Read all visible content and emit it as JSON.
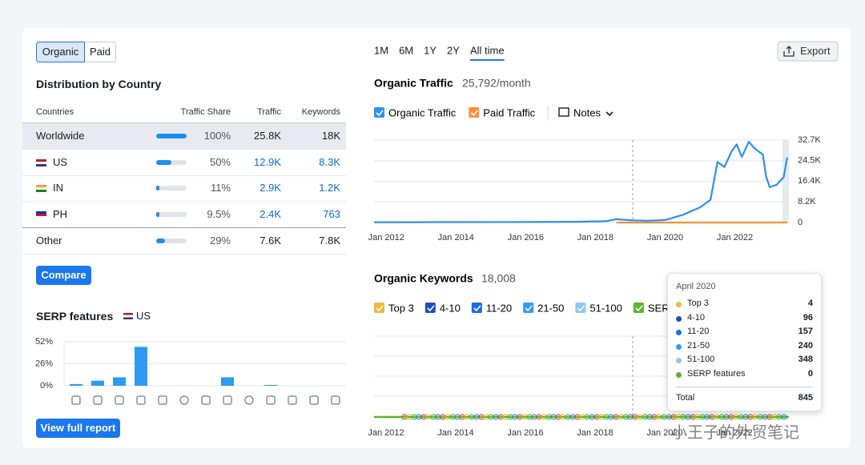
{
  "tabs": [
    "Organic",
    "Paid"
  ],
  "distribution": {
    "title": "Distribution by Country",
    "columns": [
      "Countries",
      "Traffic Share",
      "Traffic",
      "Keywords"
    ],
    "rows": [
      {
        "country": "Worldwide",
        "share": {
          "value": 100,
          "label": "100%"
        },
        "traffic": "25.8K",
        "keywords": "18K"
      },
      {
        "country": "US",
        "share": {
          "value": 50,
          "label": "50%"
        },
        "traffic": "12.9K",
        "keywords": "8.3K"
      },
      {
        "country": "IN",
        "share": {
          "value": 11,
          "label": "11%"
        },
        "traffic": "2.9K",
        "keywords": "1.2K"
      },
      {
        "country": "PH",
        "share": {
          "value": 9.5,
          "label": "9.5%"
        },
        "traffic": "2.4K",
        "keywords": "763"
      },
      {
        "country": "Other",
        "share": {
          "value": 29,
          "label": "29%"
        },
        "traffic": "7.6K",
        "keywords": "7.8K"
      }
    ]
  },
  "compare": "Compare",
  "serp_title": "SERP features",
  "serp_country": "US",
  "view_report": "View full report",
  "periods": [
    "1M",
    "6M",
    "1Y",
    "2Y",
    "All time"
  ],
  "export": "Export",
  "notes": "Notes",
  "chart_data": [
    {
      "type": "bar",
      "categories": [
        null,
        null,
        null,
        null,
        null,
        null,
        null,
        null,
        null,
        null,
        null,
        null,
        null
      ],
      "values": [
        2,
        6,
        10,
        46,
        0,
        0,
        0,
        10,
        0,
        1,
        0,
        0,
        0
      ],
      "color": "#2d9cf0",
      "ylim": [
        0,
        52
      ],
      "yticks": [
        {
          "value": 0,
          "label": "0%"
        },
        {
          "value": 26,
          "label": "26%"
        },
        {
          "value": 52,
          "label": "52%"
        }
      ],
      "grid": true
    },
    {
      "type": "line",
      "title": "Organic Traffic",
      "subtitle": "25,792/month",
      "x": [
        2011.65,
        2014,
        2016,
        2017.5,
        2018.3,
        2018.6,
        2019.0,
        2019.5,
        2020.0,
        2020.5,
        2021.0,
        2021.3,
        2021.5,
        2021.7,
        2021.9,
        2022.05,
        2022.2,
        2022.4,
        2022.6,
        2022.8,
        2022.9,
        2023.0,
        2023.2,
        2023.4,
        2023.5
      ],
      "series": [
        {
          "name": "Organic Traffic",
          "color": "#2d8ff0",
          "values": [
            100,
            150,
            200,
            300,
            500,
            1300,
            900,
            700,
            1000,
            3000,
            6000,
            9000,
            24000,
            22000,
            28000,
            31000,
            26000,
            32000,
            29000,
            27000,
            18000,
            14000,
            15000,
            18000,
            25792
          ]
        },
        {
          "name": "Paid Traffic",
          "color": "#ff8c38",
          "values": [
            null,
            null,
            null,
            null,
            null,
            0,
            0,
            0,
            0,
            0,
            0,
            0,
            0,
            0,
            0,
            0,
            0,
            0,
            0,
            0,
            0,
            0,
            0,
            0,
            0
          ]
        }
      ],
      "xlim": [
        2011.65,
        2023.55
      ],
      "xticks": [
        {
          "value": 2012,
          "label": "Jan 2012"
        },
        {
          "value": 2014,
          "label": "Jan 2014"
        },
        {
          "value": 2016,
          "label": "Jan 2016"
        },
        {
          "value": 2018,
          "label": "Jan 2018"
        },
        {
          "value": 2020,
          "label": "Jan 2020"
        },
        {
          "value": 2022,
          "label": "Jan 2022"
        }
      ],
      "ylim": [
        0,
        32700
      ],
      "yticks": [
        0,
        {
          "value": 8200,
          "label": "8.2K"
        },
        {
          "value": 16400,
          "label": "16.4K"
        },
        {
          "value": 24500,
          "label": "24.5K"
        },
        {
          "value": 32700,
          "label": "32.7K"
        }
      ],
      "grid": true
    }
  ],
  "keywords": {
    "title": "Organic Keywords",
    "total": "18,008",
    "legend": [
      {
        "name": "Top 3",
        "color": "#f4b83a"
      },
      {
        "name": "4-10",
        "color": "#1f4fbf"
      },
      {
        "name": "11-20",
        "color": "#1b6de0"
      },
      {
        "name": "21-50",
        "color": "#2d9cf0"
      },
      {
        "name": "51-100",
        "color": "#8fc6f7"
      },
      {
        "name": "SERP features",
        "color": "#5ab52c"
      }
    ],
    "xlabels": [
      "Jan 2012",
      "Jan 2014",
      "Jan 2016",
      "Jan 2018",
      "Jan 2020",
      "Jan 2022"
    ]
  },
  "tooltip": {
    "date": "April 2020",
    "rows": [
      [
        "Top 3",
        "4"
      ],
      [
        "4-10",
        "96"
      ],
      [
        "11-20",
        "157"
      ],
      [
        "21-50",
        "240"
      ],
      [
        "51-100",
        "348"
      ],
      [
        "SERP features",
        "0"
      ]
    ],
    "total": [
      "Total",
      "845"
    ]
  },
  "watermark": "小王子的外贸笔记"
}
